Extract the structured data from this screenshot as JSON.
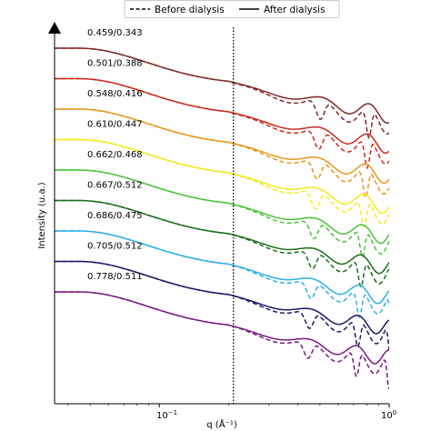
{
  "chart_data": {
    "type": "line",
    "xlabel": "q (Å⁻¹)",
    "ylabel": "Intensity (u.a.)",
    "x_scale": "log",
    "xlim": [
      0.035,
      1.0
    ],
    "x_ticks": [
      {
        "value": 0.1,
        "base": "10",
        "exp": "−1"
      },
      {
        "value": 1.0,
        "base": "10",
        "exp": "0"
      }
    ],
    "vertical_line": {
      "x": 0.21,
      "style": "dotted"
    },
    "legend": {
      "placement": "top-center",
      "entries": [
        {
          "label": "Before dialysis",
          "style": "dashed"
        },
        {
          "label": "After dialysis",
          "style": "solid"
        }
      ]
    },
    "grid": false,
    "series": [
      {
        "name": "0.459/0.343",
        "color": "#7f2a2a"
      },
      {
        "name": "0.501/0.388",
        "color": "#cc2a1f"
      },
      {
        "name": "0.548/0.416",
        "color": "#e8961a"
      },
      {
        "name": "0.610/0.447",
        "color": "#f2ea1a"
      },
      {
        "name": "0.662/0.468",
        "color": "#4cc23a"
      },
      {
        "name": "0.667/0.512",
        "color": "#1a6e1a"
      },
      {
        "name": "0.686/0.475",
        "color": "#2ab0e6"
      },
      {
        "name": "0.705/0.512",
        "color": "#1a1a66"
      },
      {
        "name": "0.778/0.511",
        "color": "#7a1a88"
      }
    ]
  }
}
